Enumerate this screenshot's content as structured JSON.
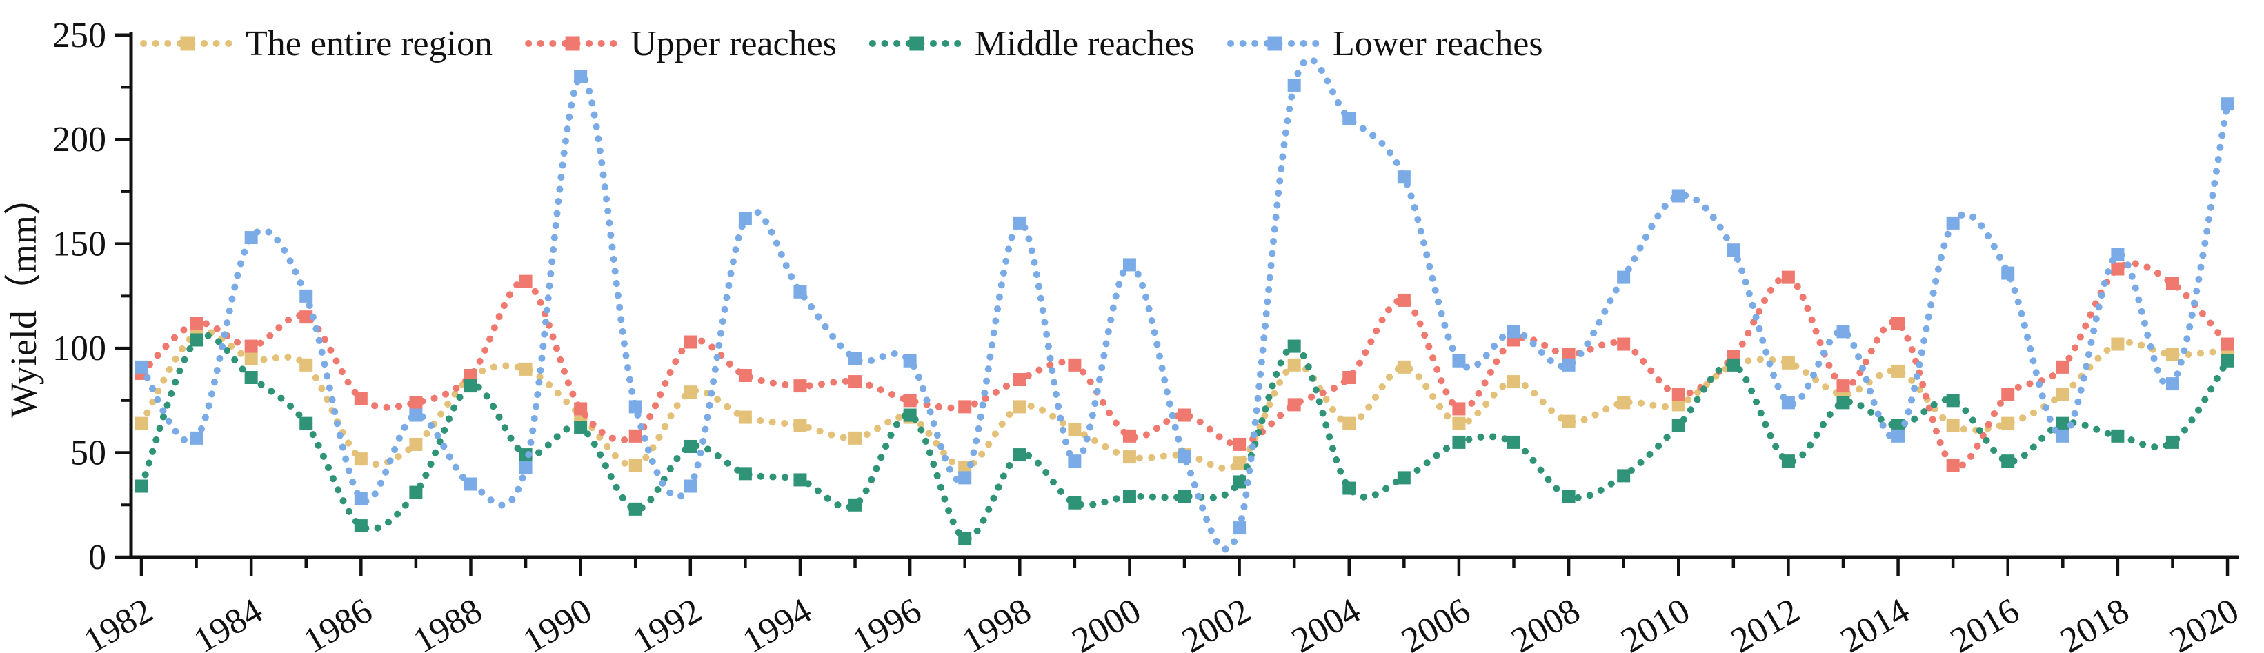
{
  "page": {
    "background": "#ffffff"
  },
  "chart_data": {
    "type": "line",
    "title": "",
    "xlabel": "",
    "ylabel": "Wyield（mm）",
    "ylim": [
      0,
      250
    ],
    "yticks_major": [
      0,
      50,
      100,
      150,
      200,
      250
    ],
    "yticks_minor": [
      25,
      75,
      125,
      175,
      225
    ],
    "xtick_major_interval": 2,
    "grid": false,
    "legend_position": "top-left",
    "line_style": "dotted",
    "marker": "square",
    "axis_color": "#111111",
    "years": [
      1982,
      1983,
      1984,
      1985,
      1986,
      1987,
      1988,
      1989,
      1990,
      1991,
      1992,
      1993,
      1994,
      1995,
      1996,
      1997,
      1998,
      1999,
      2000,
      2001,
      2002,
      2003,
      2004,
      2005,
      2006,
      2007,
      2008,
      2009,
      2010,
      2011,
      2012,
      2013,
      2014,
      2015,
      2016,
      2017,
      2018,
      2019,
      2020
    ],
    "series": [
      {
        "name": "The entire region",
        "color": "#e3c178",
        "values": [
          64,
          107,
          95,
          92,
          47,
          54,
          86,
          90,
          68,
          44,
          79,
          67,
          63,
          57,
          67,
          43,
          72,
          61,
          48,
          49,
          45,
          92,
          64,
          91,
          64,
          84,
          65,
          74,
          73,
          92,
          93,
          78,
          89,
          63,
          64,
          78,
          102,
          97,
          99
        ]
      },
      {
        "name": "Upper reaches",
        "color": "#f0796f",
        "values": [
          88,
          112,
          101,
          115,
          76,
          74,
          87,
          132,
          71,
          58,
          103,
          87,
          82,
          84,
          75,
          72,
          85,
          92,
          58,
          68,
          54,
          73,
          86,
          123,
          71,
          104,
          97,
          102,
          78,
          96,
          134,
          82,
          112,
          44,
          78,
          91,
          138,
          131,
          102
        ]
      },
      {
        "name": "Middle reaches",
        "color": "#2f9377",
        "values": [
          34,
          104,
          86,
          64,
          15,
          31,
          82,
          49,
          62,
          23,
          53,
          40,
          37,
          25,
          68,
          9,
          49,
          26,
          29,
          29,
          36,
          101,
          33,
          38,
          55,
          55,
          29,
          39,
          63,
          92,
          46,
          74,
          63,
          75,
          46,
          64,
          58,
          55,
          94
        ]
      },
      {
        "name": "Lower reaches",
        "color": "#7aabe6",
        "values": [
          91,
          57,
          153,
          125,
          28,
          68,
          35,
          43,
          230,
          72,
          34,
          162,
          127,
          95,
          94,
          38,
          160,
          46,
          140,
          48,
          14,
          226,
          210,
          182,
          94,
          108,
          92,
          134,
          173,
          147,
          74,
          108,
          58,
          160,
          136,
          58,
          145,
          83,
          217
        ]
      }
    ]
  }
}
